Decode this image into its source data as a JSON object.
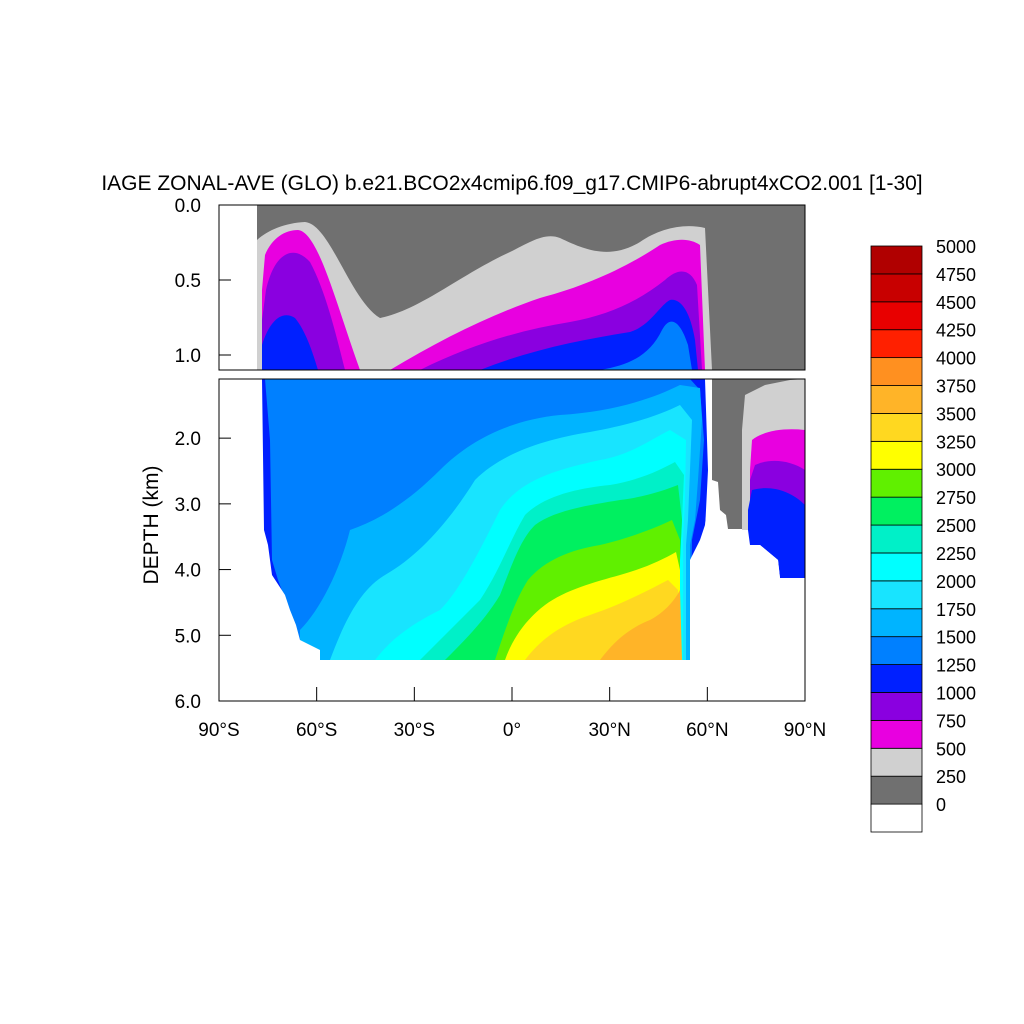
{
  "chart_data": {
    "type": "heatmap",
    "title": "IAGE ZONAL-AVE (GLO) b.e21.BCO2x4cmip6.f09_g17.CMIP6-abrupt4xCO2.001 [1-30]",
    "ylabel": "DEPTH (km)",
    "xlabel": "",
    "x_ticks": [
      "90°S",
      "60°S",
      "30°S",
      "0°",
      "30°N",
      "60°N",
      "90°N"
    ],
    "x_tick_values": [
      -90,
      -60,
      -30,
      0,
      30,
      60,
      90
    ],
    "xlim": [
      -90,
      90
    ],
    "upper_panel": {
      "ylim": [
        0,
        1.1
      ],
      "y_ticks": [
        "0.0",
        "0.5",
        "1.0"
      ],
      "y_tick_values": [
        0,
        0.5,
        1.0
      ]
    },
    "lower_panel": {
      "ylim": [
        1.1,
        6.0
      ],
      "y_ticks": [
        "2.0",
        "3.0",
        "4.0",
        "5.0",
        "6.0"
      ],
      "y_tick_values": [
        2,
        3,
        4,
        5,
        6
      ]
    },
    "colorbar": {
      "levels": [
        "0",
        "250",
        "500",
        "750",
        "1000",
        "1250",
        "1500",
        "1750",
        "2000",
        "2250",
        "2500",
        "2750",
        "3000",
        "3250",
        "3500",
        "3750",
        "4000",
        "4250",
        "4500",
        "4750",
        "5000"
      ],
      "colors": [
        "#ffffff",
        "#707070",
        "#d0d0d0",
        "#e800e0",
        "#8a00e0",
        "#0020ff",
        "#0080ff",
        "#00b4ff",
        "#18e4ff",
        "#00ffff",
        "#00f0c8",
        "#00f060",
        "#60f000",
        "#ffff00",
        "#ffd820",
        "#ffb428",
        "#ff9020",
        "#ff2000",
        "#e80000",
        "#c80000",
        "#b00000"
      ]
    }
  }
}
